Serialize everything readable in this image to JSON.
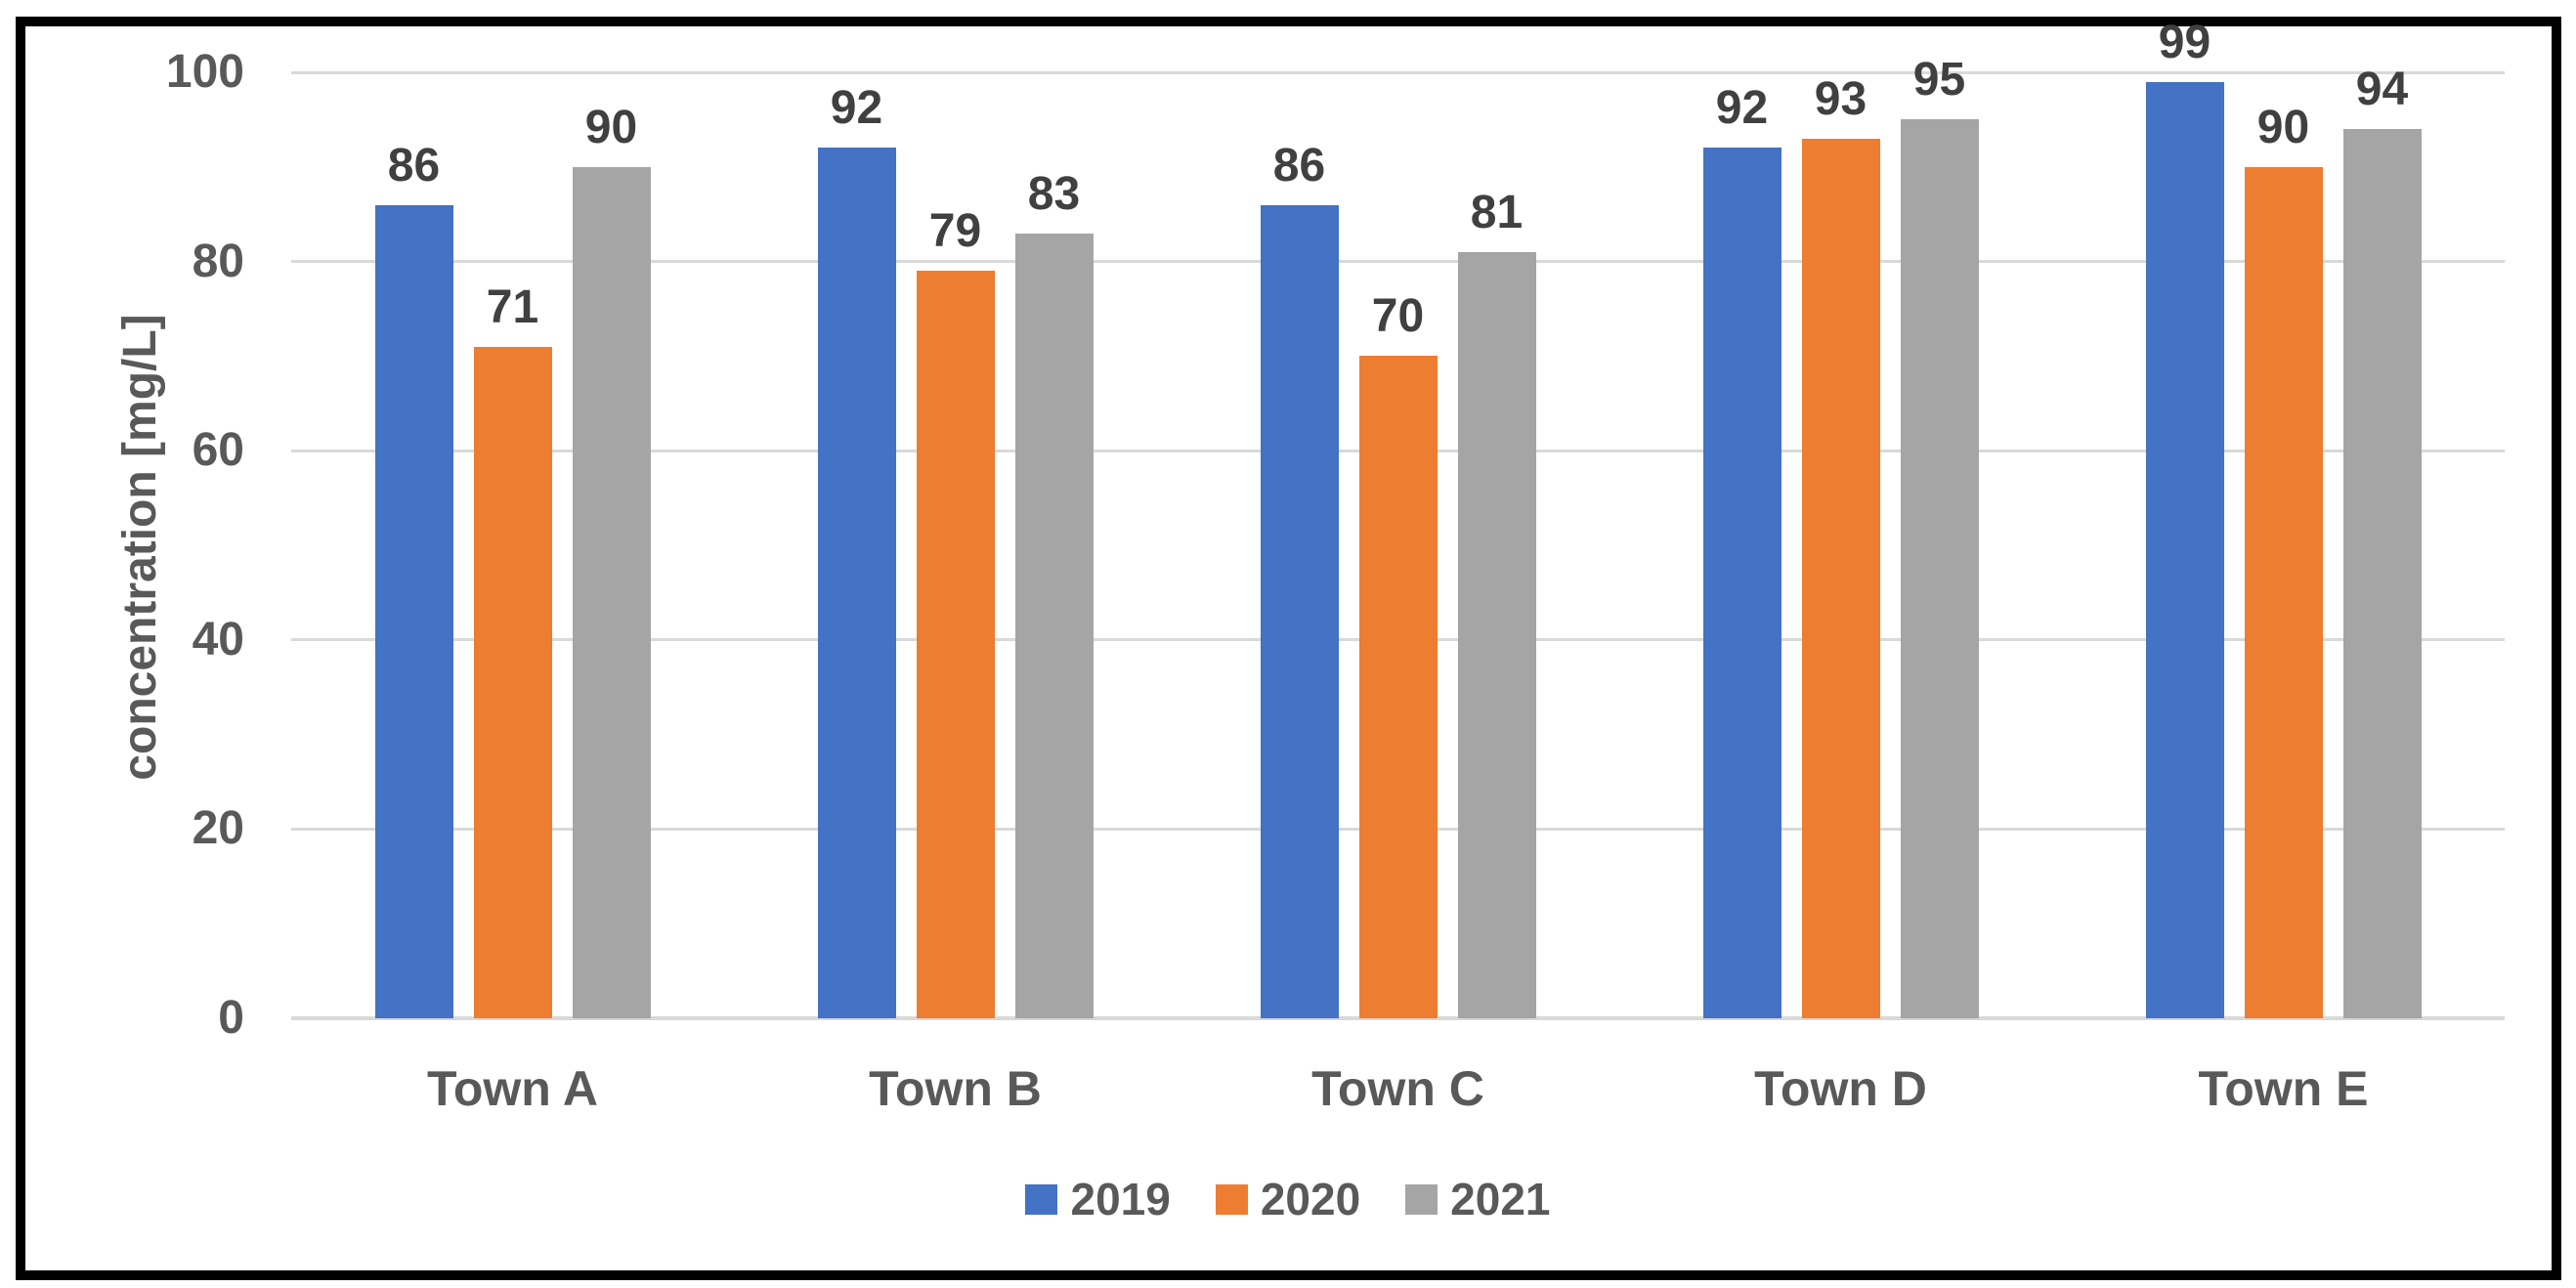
{
  "chart_data": {
    "type": "bar",
    "title": "",
    "categories": [
      "Town A",
      "Town B",
      "Town C",
      "Town D",
      "Town E"
    ],
    "series": [
      {
        "name": "2019",
        "color": "#4472C4",
        "values": [
          86,
          92,
          86,
          92,
          99
        ]
      },
      {
        "name": "2020",
        "color": "#ED7D31",
        "values": [
          71,
          79,
          70,
          93,
          90
        ]
      },
      {
        "name": "2021",
        "color": "#A5A5A5",
        "values": [
          90,
          83,
          81,
          95,
          94
        ]
      }
    ],
    "xlabel": "",
    "ylabel": "concentration [mg/L]",
    "ylim": [
      0,
      100
    ],
    "yticks": [
      0,
      20,
      40,
      60,
      80,
      100
    ],
    "grid": true,
    "legend_position": "bottom",
    "data_labels_shown": true
  },
  "colors": {
    "frame_border": "#000000",
    "gridline": "#D9D9D9",
    "axis_line": "#D9D9D9",
    "data_label_text": "#404040",
    "axis_text": "#595959",
    "background": "#FFFFFF"
  }
}
